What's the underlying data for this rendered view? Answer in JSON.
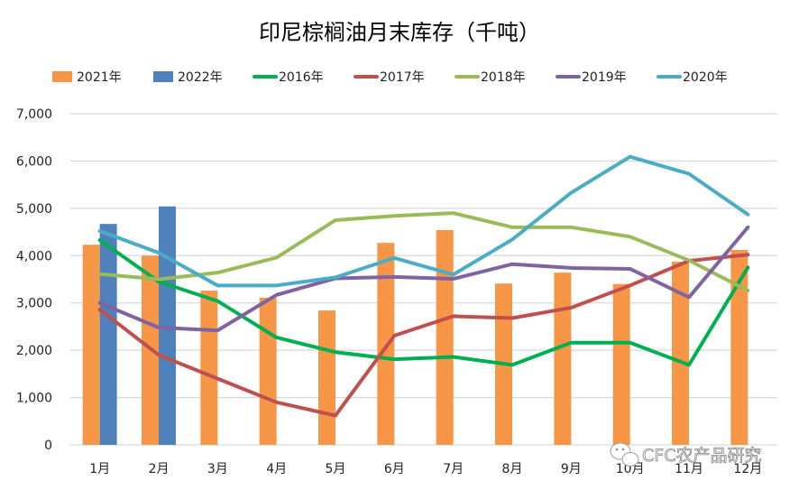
{
  "chart_data": {
    "type": "bar+line",
    "title": "印尼棕榈油月末库存（千吨）",
    "xlabel": "",
    "ylabel": "",
    "ylim": [
      0,
      7000
    ],
    "yticks": [
      0,
      1000,
      2000,
      3000,
      4000,
      5000,
      6000,
      7000
    ],
    "ytick_labels": [
      "0",
      "1,000",
      "2,000",
      "3,000",
      "4,000",
      "5,000",
      "6,000",
      "7,000"
    ],
    "grid": true,
    "legend_position": "top",
    "categories": [
      "1月",
      "2月",
      "3月",
      "4月",
      "5月",
      "6月",
      "7月",
      "8月",
      "9月",
      "10月",
      "11月",
      "12月"
    ],
    "series": [
      {
        "name": "2021年",
        "kind": "bar",
        "color": "#F79646",
        "values": [
          4230,
          4000,
          3260,
          3110,
          2840,
          4270,
          4540,
          3410,
          3640,
          3400,
          3870,
          4120
        ]
      },
      {
        "name": "2022年",
        "kind": "bar",
        "color": "#4F81BD",
        "values": [
          4670,
          5040,
          null,
          null,
          null,
          null,
          null,
          null,
          null,
          null,
          null,
          null
        ]
      },
      {
        "name": "2016年",
        "kind": "line",
        "color": "#00B050",
        "values": [
          4330,
          3450,
          3040,
          2270,
          1960,
          1810,
          1860,
          1690,
          2160,
          2160,
          1690,
          3750
        ]
      },
      {
        "name": "2017年",
        "kind": "line",
        "color": "#C0504D",
        "values": [
          2860,
          1900,
          1400,
          900,
          620,
          2310,
          2720,
          2680,
          2900,
          3370,
          3890,
          4020
        ]
      },
      {
        "name": "2018年",
        "kind": "line",
        "color": "#9BBB59",
        "values": [
          3610,
          3500,
          3640,
          3960,
          4750,
          4840,
          4900,
          4600,
          4600,
          4400,
          3900,
          3260
        ]
      },
      {
        "name": "2019年",
        "kind": "line",
        "color": "#8064A2",
        "values": [
          3000,
          2480,
          2420,
          3170,
          3520,
          3550,
          3510,
          3820,
          3740,
          3720,
          3120,
          4600
        ]
      },
      {
        "name": "2020年",
        "kind": "line",
        "color": "#4BACC6",
        "values": [
          4520,
          4060,
          3370,
          3370,
          3540,
          3950,
          3600,
          4340,
          5330,
          6090,
          5730,
          4870
        ]
      }
    ],
    "watermark": "CFC农产品研究"
  }
}
